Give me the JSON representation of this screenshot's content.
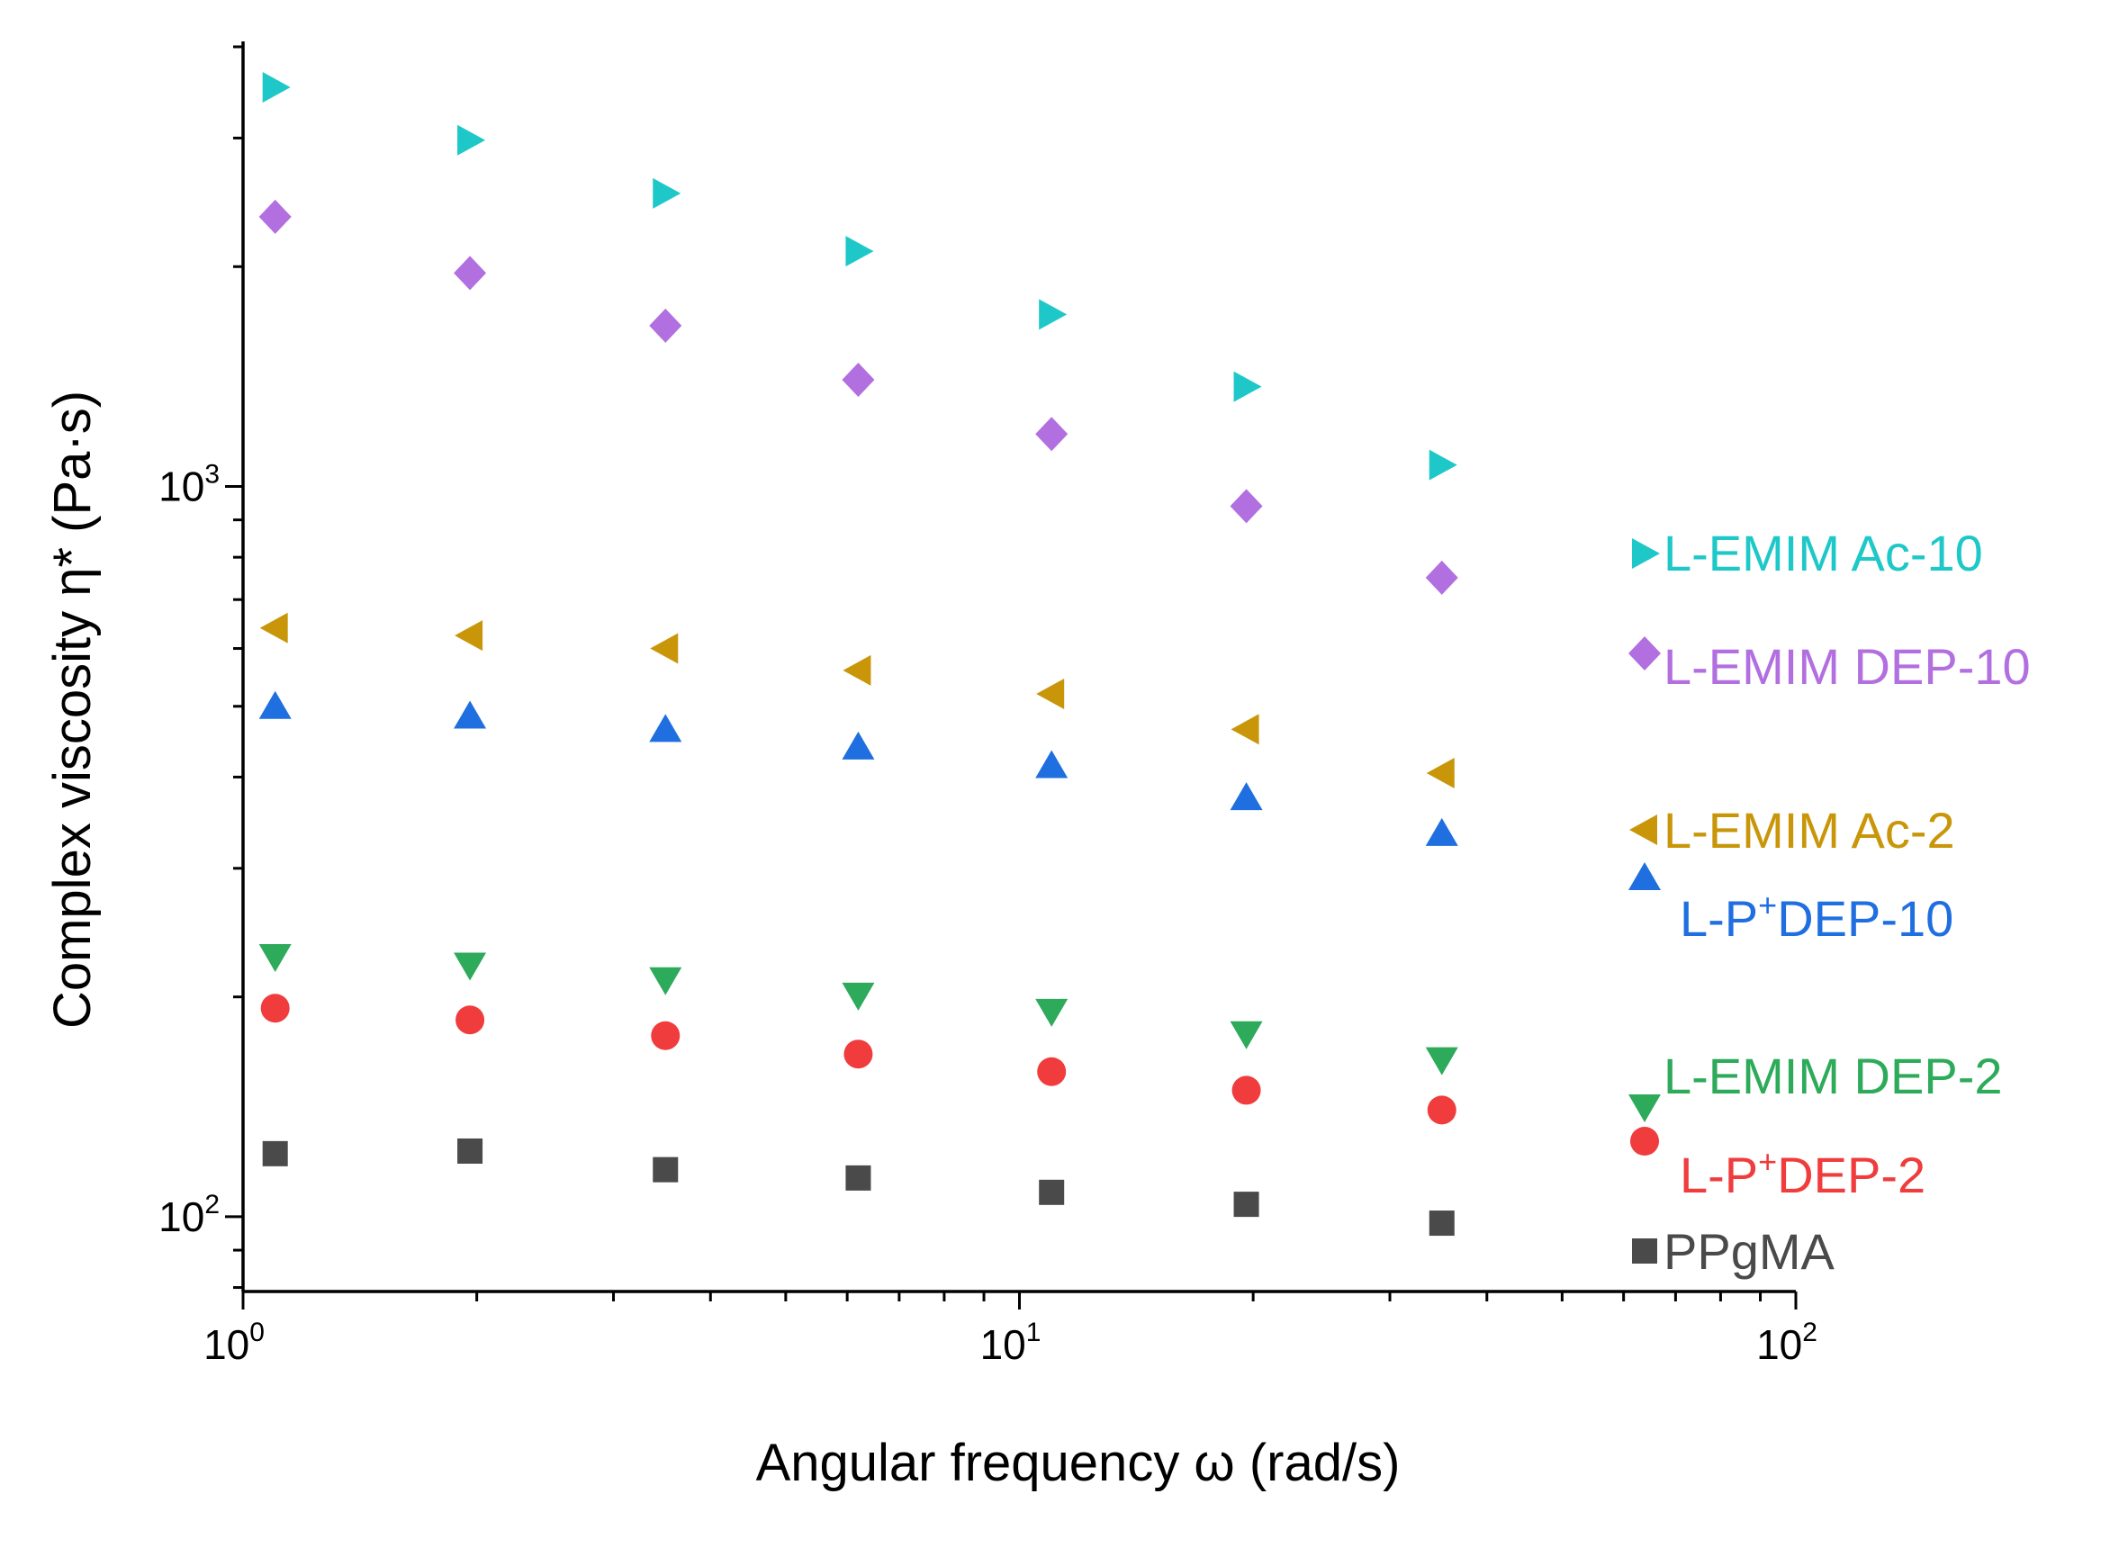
{
  "chart_data": {
    "type": "scatter",
    "xscale": "log",
    "yscale": "log",
    "xlabel": "Angular frequency ω (rad/s)",
    "ylabel": "Complex viscosity η* (Pa·s)",
    "xlim": [
      1,
      100
    ],
    "ylim": [
      79,
      4000
    ],
    "x_ticks": [
      {
        "base": "10",
        "exp": "0",
        "value": 1
      },
      {
        "base": "10",
        "exp": "1",
        "value": 10
      },
      {
        "base": "10",
        "exp": "2",
        "value": 100
      }
    ],
    "y_ticks": [
      {
        "base": "10",
        "exp": "2",
        "value": 100
      },
      {
        "base": "10",
        "exp": "3",
        "value": 1000
      }
    ],
    "x": [
      1.1,
      1.96,
      3.5,
      6.2,
      11.0,
      19.6,
      35.0
    ],
    "series": [
      {
        "name": "L-EMIM Ac-10",
        "sup": "",
        "name_after": "",
        "color": "#1ec8c8",
        "marker": "triangle-right",
        "values": [
          3520,
          2980,
          2520,
          2100,
          1720,
          1370,
          1070
        ]
      },
      {
        "name": "L-EMIM DEP-10",
        "sup": "",
        "name_after": "",
        "color": "#b26fe0",
        "marker": "diamond",
        "values": [
          2340,
          1960,
          1660,
          1400,
          1180,
          940,
          750
        ]
      },
      {
        "name": "L-EMIM Ac-2",
        "sup": "",
        "name_after": "",
        "color": "#c9960a",
        "marker": "triangle-left",
        "values": [
          640,
          625,
          600,
          560,
          520,
          465,
          405
        ]
      },
      {
        "name": "L-P",
        "sup": "+",
        "name_after": "DEP-10",
        "color": "#1f6fe0",
        "marker": "triangle-up",
        "values": [
          500,
          485,
          465,
          440,
          415,
          375,
          335
        ]
      },
      {
        "name": "L-EMIM DEP-2",
        "sup": "",
        "name_after": "",
        "color": "#2daa5a",
        "marker": "triangle-down",
        "values": [
          227,
          221,
          211,
          201,
          191,
          178,
          164
        ]
      },
      {
        "name": "L-P",
        "sup": "+",
        "name_after": "DEP-2",
        "color": "#f03c3c",
        "marker": "circle",
        "values": [
          193,
          186,
          177,
          167,
          158,
          149,
          140
        ]
      },
      {
        "name": "PPgMA",
        "sup": "",
        "name_after": "",
        "color": "#4a4a4a",
        "marker": "square",
        "values": [
          122,
          123,
          116,
          113,
          108,
          104,
          98
        ]
      }
    ]
  }
}
